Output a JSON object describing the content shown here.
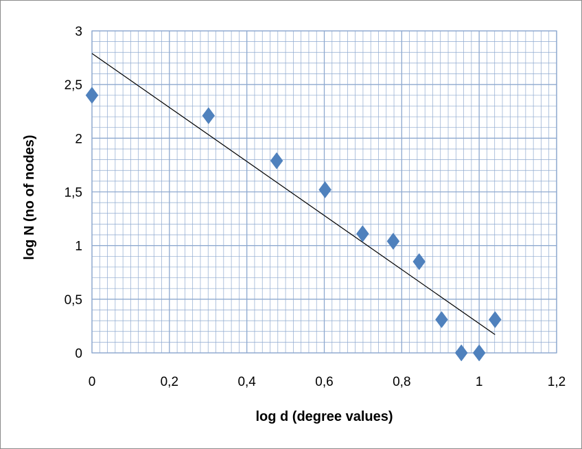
{
  "chart_data": {
    "type": "scatter",
    "title": "",
    "xlabel": "log d (degree values)",
    "ylabel": "log N (no of nodes)",
    "xlim": [
      0,
      1.2
    ],
    "ylim": [
      0,
      3
    ],
    "x_ticks": [
      0,
      0.2,
      0.4,
      0.6,
      0.8,
      1,
      1.2
    ],
    "y_ticks": [
      0,
      0.5,
      1,
      1.5,
      2,
      2.5,
      3
    ],
    "x_tick_labels": [
      "0",
      "0,2",
      "0,4",
      "0,6",
      "0,8",
      "1",
      "1,2"
    ],
    "y_tick_labels": [
      "0",
      "0,5",
      "1",
      "1,5",
      "2",
      "2,5",
      "3"
    ],
    "grid": true,
    "legend": "none",
    "marker": "diamond",
    "series": [
      {
        "points": [
          {
            "x": 0,
            "y": 2.4
          },
          {
            "x": 0.301,
            "y": 2.21
          },
          {
            "x": 0.477,
            "y": 1.79
          },
          {
            "x": 0.602,
            "y": 1.52
          },
          {
            "x": 0.699,
            "y": 1.11
          },
          {
            "x": 0.778,
            "y": 1.04
          },
          {
            "x": 0.845,
            "y": 0.85
          },
          {
            "x": 0.903,
            "y": 0.31
          },
          {
            "x": 0.954,
            "y": 0
          },
          {
            "x": 1,
            "y": 0
          },
          {
            "x": 1.041,
            "y": 0.31
          }
        ],
        "color": "#4F81BD"
      }
    ],
    "trendline": {
      "type": "linear",
      "x": [
        0,
        1.041
      ],
      "y": [
        2.79,
        0.17
      ],
      "color": "#000000"
    },
    "colors": {
      "gridline": "#8EA9CF",
      "plot_border": "#8EA9CF",
      "frame_border": "#8A8A8A"
    }
  }
}
